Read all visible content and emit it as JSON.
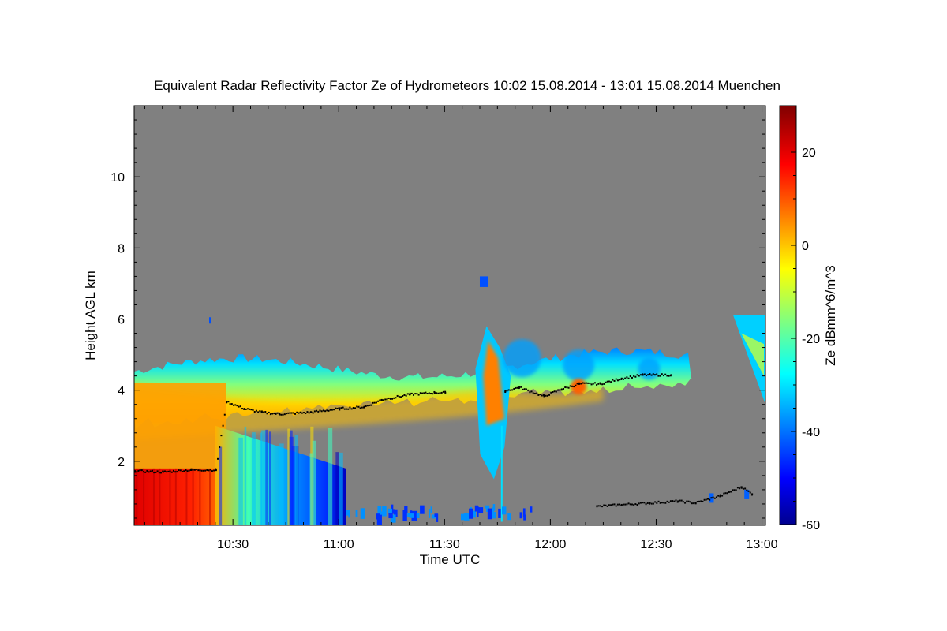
{
  "chart_data": {
    "type": "heatmap",
    "title": "Equivalent Radar Reflectivity Factor Ze of Hydrometeors   10:02 15.08.2014 - 13:01 15.08.2014 Muenchen",
    "xlabel": "Time UTC",
    "ylabel": "Height AGL km",
    "x_range": [
      "10:02",
      "13:01"
    ],
    "x_ticks": [
      "10:30",
      "11:00",
      "11:30",
      "12:00",
      "12:30",
      "13:00"
    ],
    "ylim": [
      0.2,
      12
    ],
    "y_ticks": [
      2,
      4,
      6,
      8,
      10
    ],
    "colorbar": {
      "label": "Ze dBmm^6/m^3",
      "range": [
        -60,
        30
      ],
      "ticks": [
        20,
        0,
        -20,
        -40,
        -60
      ],
      "colormap": "jet"
    },
    "background_color": "#808080",
    "cloud_base_marker_color": "#000000",
    "echo_regions": [
      {
        "id": "main_cloud_layer",
        "t_start": "10:02",
        "t_end": "12:40",
        "bottom_km": 3.2,
        "top_km": 5.0,
        "ze_range_dbz": [
          -30,
          10
        ]
      },
      {
        "id": "surface_precipitation",
        "t_start": "10:02",
        "t_end": "10:25",
        "bottom_km": 0.2,
        "top_km": 1.8,
        "ze_range_dbz": [
          10,
          25
        ]
      },
      {
        "id": "falling_streaks",
        "t_start": "10:25",
        "t_end": "11:02",
        "bottom_km": 0.2,
        "top_km": 3.0,
        "ze_range_dbz": [
          -45,
          -10
        ]
      },
      {
        "id": "isolated_echo",
        "t_start": "11:40",
        "t_end": "11:42",
        "bottom_km": 6.9,
        "top_km": 7.2,
        "ze_range_dbz": [
          -45,
          -40
        ]
      },
      {
        "id": "convective_tower",
        "t_start": "11:41",
        "t_end": "11:47",
        "bottom_km": 1.5,
        "top_km": 5.8,
        "ze_range_dbz": [
          -40,
          10
        ]
      },
      {
        "id": "late_cloud",
        "t_start": "12:55",
        "t_end": "13:01",
        "bottom_km": 3.6,
        "top_km": 6.1,
        "ze_range_dbz": [
          -35,
          -10
        ]
      }
    ]
  }
}
